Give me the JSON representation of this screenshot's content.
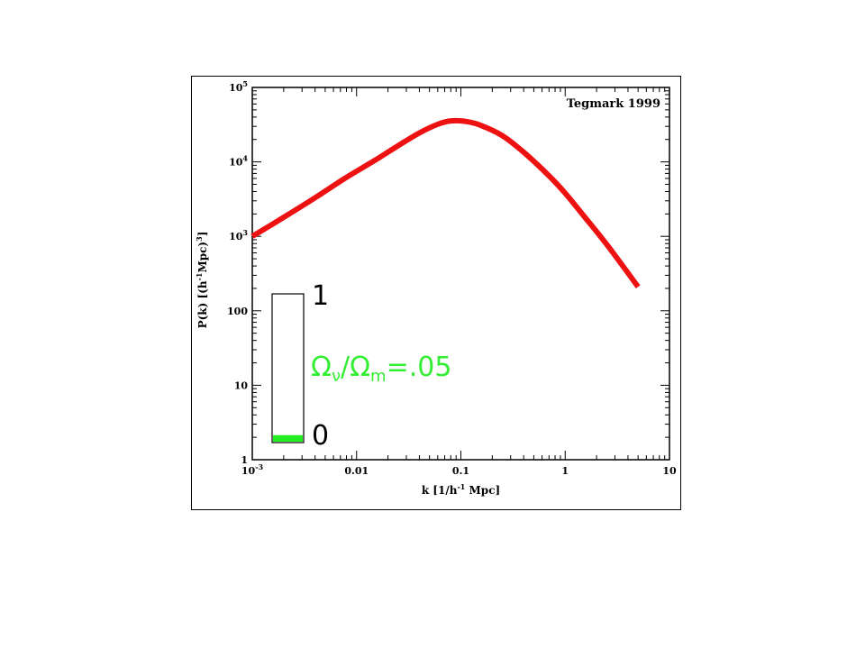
{
  "colors": {
    "curve": "#ee1111",
    "inset_fill": "#22ee22",
    "inset_label": "#33ee33",
    "axis": "#000000"
  },
  "chart_data": {
    "type": "line",
    "x_scale": "log",
    "y_scale": "log",
    "xlim": [
      0.001,
      10
    ],
    "ylim": [
      1,
      100000
    ],
    "xlabel_parts": {
      "pre": "k [1/h",
      "sup": "-1",
      "post": " Mpc]"
    },
    "ylabel_parts": {
      "pre": "P(k) [(h",
      "sup1": "-1",
      "mid": "Mpc)",
      "sup2": "3",
      "post": "]"
    },
    "x_ticks": [
      {
        "value": 0.001,
        "base": "10",
        "exp": "-3"
      },
      {
        "value": 0.01,
        "label": "0.01"
      },
      {
        "value": 0.1,
        "label": "0.1"
      },
      {
        "value": 1,
        "label": "1"
      },
      {
        "value": 10,
        "label": "10"
      }
    ],
    "y_ticks": [
      {
        "value": 1,
        "label": "1"
      },
      {
        "value": 10,
        "label": "10"
      },
      {
        "value": 100,
        "label": "100"
      },
      {
        "value": 1000,
        "base": "10",
        "exp": "3"
      },
      {
        "value": 10000,
        "base": "10",
        "exp": "4"
      },
      {
        "value": 100000,
        "base": "10",
        "exp": "5"
      }
    ],
    "series": [
      {
        "color": "#ee1111",
        "x": [
          0.001,
          0.002,
          0.004,
          0.008,
          0.015,
          0.025,
          0.04,
          0.06,
          0.08,
          0.11,
          0.15,
          0.25,
          0.4,
          0.7,
          1.0,
          1.5,
          2.5,
          5.0
        ],
        "y": [
          1000,
          1800,
          3300,
          6200,
          10500,
          16500,
          24500,
          32000,
          35500,
          35000,
          31500,
          22500,
          13500,
          6500,
          3800,
          1900,
          780,
          210
        ]
      }
    ],
    "annotations": {
      "credit": "Tegmark 1999",
      "inset_top": "1",
      "inset_bottom": "0",
      "omega_nu": "Ω",
      "nu_sub": "ν",
      "slash": "/Ω",
      "m_sub": "m",
      "ratio": "=.05",
      "inset_fraction": 0.05
    }
  }
}
